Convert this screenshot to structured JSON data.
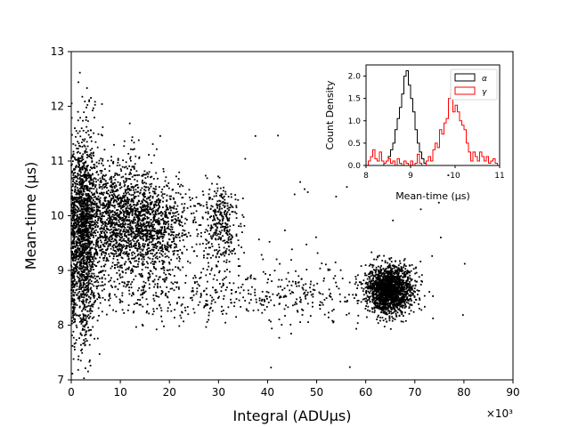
{
  "chart_data": [
    {
      "type": "scatter",
      "title": "",
      "xlabel": "Integral (ADUμs)",
      "ylabel": "Mean-time (μs)",
      "x_multiplier_label": "×10³",
      "xlim": [
        0,
        90
      ],
      "ylim": [
        7,
        13
      ],
      "x_ticks": [
        "0",
        "10",
        "20",
        "30",
        "40",
        "50",
        "60",
        "70",
        "80",
        "90"
      ],
      "y_ticks": [
        "7",
        "8",
        "9",
        "10",
        "11",
        "12",
        "13"
      ],
      "grid": false,
      "marker_color": "#000000",
      "clusters": [
        {
          "name": "low-integral band",
          "x_center": 2.5,
          "x_spread": 1.3,
          "y_center": 9.7,
          "y_spread": 1.0,
          "count": 1400
        },
        {
          "name": "low-integral extension",
          "x_center": 9,
          "x_spread": 5,
          "y_center": 9.9,
          "y_spread": 0.55,
          "count": 1600
        },
        {
          "name": "mid cluster",
          "x_center": 17,
          "x_spread": 4,
          "y_center": 9.8,
          "y_spread": 0.4,
          "count": 700
        },
        {
          "name": "cluster near 30",
          "x_center": 30.5,
          "x_spread": 1.8,
          "y_center": 9.85,
          "y_spread": 0.35,
          "count": 330
        },
        {
          "name": "lower band",
          "x_center": 20,
          "x_spread": 14,
          "y_center": 8.6,
          "y_spread": 0.28,
          "count": 450
        },
        {
          "name": "tail band",
          "x_center": 48,
          "x_spread": 7,
          "y_center": 8.55,
          "y_spread": 0.25,
          "count": 160
        },
        {
          "name": "high-integral cluster",
          "x_center": 65,
          "x_spread": 2.3,
          "y_center": 8.65,
          "y_spread": 0.22,
          "count": 1800
        },
        {
          "name": "sparse outliers",
          "x_center": 45,
          "x_spread": 25,
          "y_center": 9.3,
          "y_spread": 0.8,
          "count": 70
        }
      ]
    },
    {
      "type": "step-histogram",
      "title": "",
      "xlabel": "Mean-time (μs)",
      "ylabel": "Count Density",
      "xlim": [
        8,
        11
      ],
      "ylim": [
        0,
        2.25
      ],
      "x_ticks": [
        "8",
        "9",
        "10",
        "11"
      ],
      "y_ticks": [
        "0.0",
        "0.5",
        "1.0",
        "1.5",
        "2.0"
      ],
      "legend_position": "top-right",
      "bin_width": 0.05,
      "bin_start": 8.0,
      "series": [
        {
          "name": "α",
          "color": "#000000",
          "values": [
            0,
            0,
            0,
            0,
            0,
            0,
            0,
            0,
            0.05,
            0.1,
            0.2,
            0.35,
            0.5,
            0.8,
            1.05,
            1.3,
            1.6,
            2.0,
            2.12,
            1.8,
            1.5,
            1.2,
            0.8,
            0.5,
            0.3,
            0.15,
            0.05,
            0,
            0,
            0,
            0,
            0,
            0,
            0,
            0,
            0,
            0,
            0,
            0,
            0,
            0,
            0,
            0,
            0,
            0,
            0,
            0,
            0,
            0,
            0,
            0,
            0,
            0,
            0,
            0,
            0,
            0,
            0,
            0,
            0
          ]
        },
        {
          "name": "γ",
          "color": "#ff0000",
          "values": [
            0,
            0.1,
            0.2,
            0.35,
            0.15,
            0.1,
            0.3,
            0.1,
            0.05,
            0.1,
            0.15,
            0.05,
            0.1,
            0,
            0.15,
            0.05,
            0,
            0.1,
            0.05,
            0,
            0.1,
            0,
            0.05,
            0.25,
            0.05,
            0,
            0,
            0.1,
            0.2,
            0.1,
            0.35,
            0.5,
            0.4,
            0.8,
            0.7,
            0.95,
            1.05,
            1.5,
            1.6,
            1.2,
            1.35,
            1.2,
            1.0,
            0.9,
            0.8,
            0.5,
            0.3,
            0.1,
            0.3,
            0.2,
            0.1,
            0.3,
            0.2,
            0.1,
            0.2,
            0.05,
            0.1,
            0.15,
            0.05,
            0
          ]
        }
      ]
    }
  ]
}
